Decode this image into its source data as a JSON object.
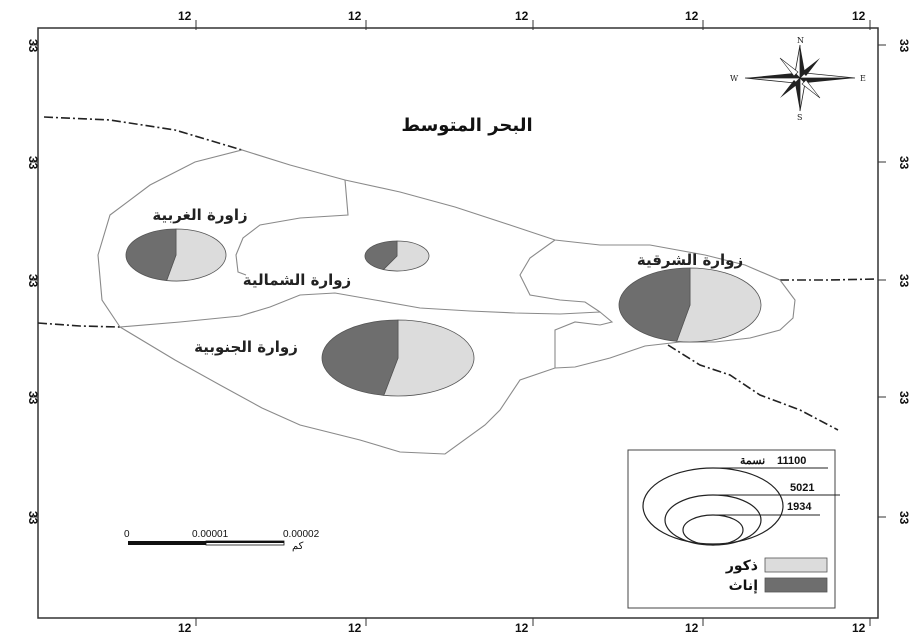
{
  "map": {
    "title": "البحر المتوسط",
    "colors": {
      "males": "#dcdcdc",
      "females": "#6e6e6e",
      "boundary": "#8a8a8a",
      "road": "#222222",
      "frame": "#333333"
    },
    "top_ticks": [
      "12",
      "12",
      "12",
      "12",
      "12"
    ],
    "bottom_ticks": [
      "12",
      "12",
      "12",
      "12",
      "12"
    ],
    "left_ticks": [
      "33",
      "33",
      "33",
      "33",
      "33"
    ],
    "right_ticks": [
      "33",
      "33",
      "33",
      "33",
      "33"
    ],
    "compass": {
      "n": "N",
      "s": "S",
      "e": "E",
      "w": "W"
    },
    "regions": [
      {
        "id": "west",
        "label": "زاورة الغربية",
        "males_share": 0.53
      },
      {
        "id": "north",
        "label": "زوارة الشمالية",
        "males_share": 0.57
      },
      {
        "id": "east",
        "label": "زوارة الشرقية",
        "males_share": 0.53
      },
      {
        "id": "south",
        "label": "زوارة الجنوبية",
        "males_share": 0.53
      }
    ],
    "scale_bar": {
      "labels": [
        "0",
        "0.00001",
        "0.00002"
      ],
      "unit": "كم"
    },
    "legend": {
      "size_values": [
        "11100",
        "5021",
        "1934"
      ],
      "size_unit": "نسمة",
      "males_label": "ذكور",
      "females_label": "إناث"
    }
  }
}
